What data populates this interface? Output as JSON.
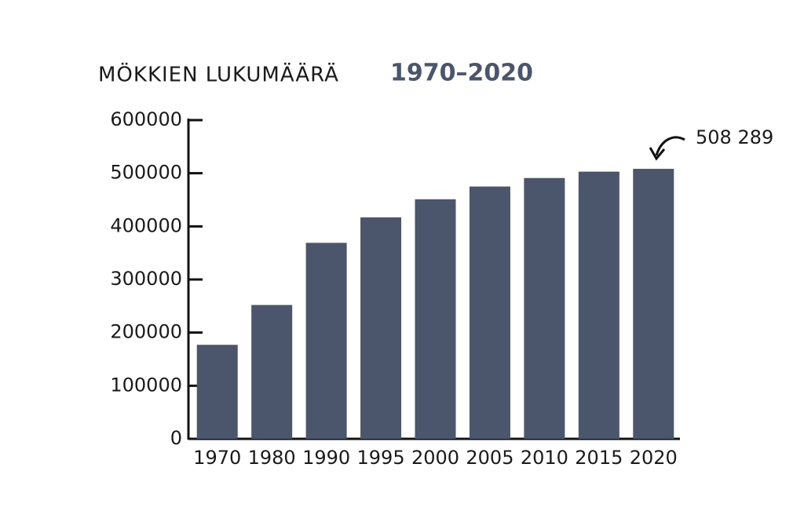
{
  "chart_data": {
    "type": "bar",
    "title": "MÖKKIEN LUKUMÄÄRÄ",
    "title_highlight": "1970–2020",
    "categories": [
      "1970",
      "1980",
      "1990",
      "1995",
      "2000",
      "2005",
      "2010",
      "2015",
      "2020"
    ],
    "values": [
      177000,
      252000,
      369000,
      417000,
      451000,
      475000,
      491000,
      503000,
      508289
    ],
    "value_labels": [
      null,
      null,
      null,
      null,
      null,
      null,
      null,
      null,
      "508 289"
    ],
    "color": "#4b556b",
    "ylim": [
      0,
      600000
    ],
    "yticks": [
      0,
      100000,
      200000,
      300000,
      400000,
      500000,
      600000
    ],
    "grid": false
  }
}
